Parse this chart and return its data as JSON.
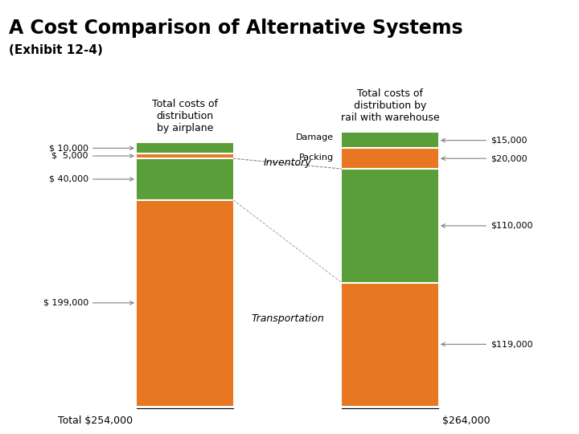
{
  "title": "A Cost Comparison of Alternative Systems",
  "subtitle": "(Exhibit 12-4)",
  "title_bg": "#c8d89a",
  "bar1_label": "Total costs of\ndistribution\nby airplane",
  "bar2_label": "Total costs of\ndistribution by\nrail with warehouse",
  "bar1_total": "$254,000",
  "bar2_total": "$264,000",
  "segments": {
    "airplane": [
      199000,
      40000,
      5000,
      10000
    ],
    "rail": [
      119000,
      110000,
      20000,
      15000
    ]
  },
  "segment_labels": [
    "Transportation",
    "Inventory",
    "Packing",
    "Damage"
  ],
  "colors": [
    "#E87722",
    "#5a9e3a",
    "#E87722",
    "#5a9e3a"
  ],
  "left_labels": [
    "$ 10,000",
    "$  5,000",
    "$ 40,000",
    "$ 199,000"
  ],
  "right_labels": [
    "$15,000",
    "$20,000",
    "$110,000",
    "$119,000"
  ],
  "segment_label_positions": [
    "center_middle",
    "center_top_offset",
    "center_damage_packing",
    "center_inventory"
  ],
  "orange": "#E87722",
  "green": "#5a9e3a",
  "white_line": "#ffffff",
  "bg_color": "#ffffff",
  "total_label_prefix": "Total "
}
